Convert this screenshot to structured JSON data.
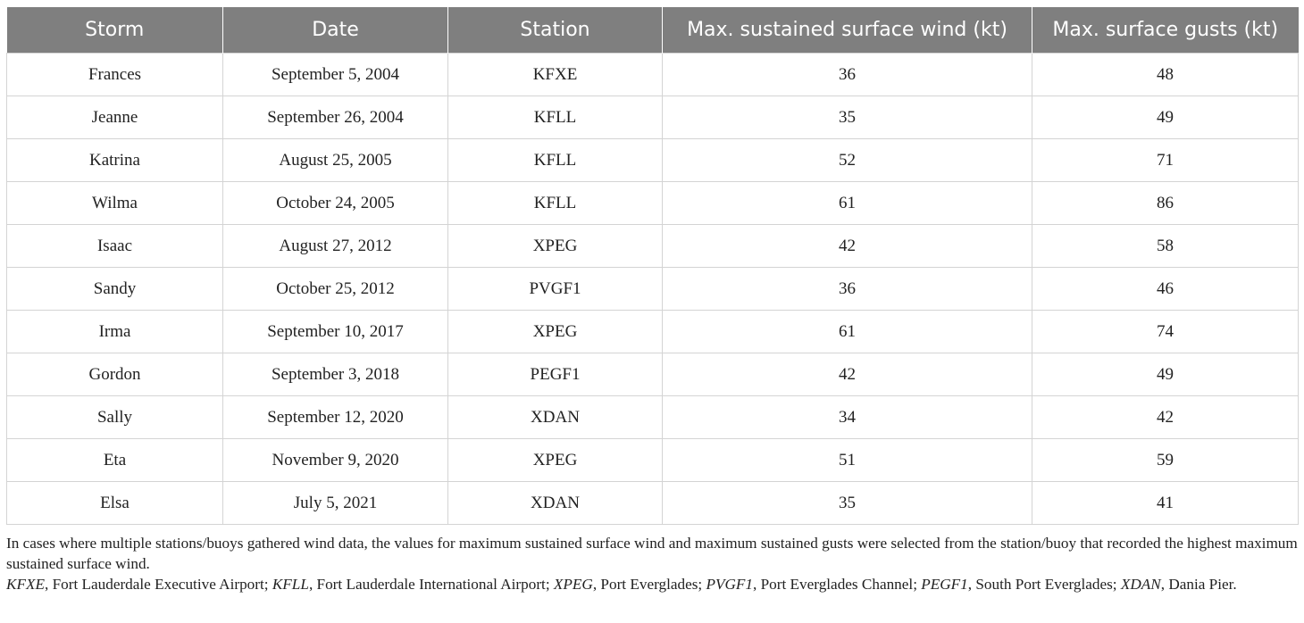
{
  "table": {
    "headers": [
      "Storm",
      "Date",
      "Station",
      "Max. sustained surface wind (kt)",
      "Max. surface gusts (kt)"
    ],
    "rows": [
      [
        "Frances",
        "September 5, 2004",
        "KFXE",
        "36",
        "48"
      ],
      [
        "Jeanne",
        "September 26, 2004",
        "KFLL",
        "35",
        "49"
      ],
      [
        "Katrina",
        "August 25, 2005",
        "KFLL",
        "52",
        "71"
      ],
      [
        "Wilma",
        "October 24, 2005",
        "KFLL",
        "61",
        "86"
      ],
      [
        "Isaac",
        "August 27, 2012",
        "XPEG",
        "42",
        "58"
      ],
      [
        "Sandy",
        "October 25, 2012",
        "PVGF1",
        "36",
        "46"
      ],
      [
        "Irma",
        "September 10, 2017",
        "XPEG",
        "61",
        "74"
      ],
      [
        "Gordon",
        "September 3, 2018",
        "PEGF1",
        "42",
        "49"
      ],
      [
        "Sally",
        "September 12, 2020",
        "XDAN",
        "34",
        "42"
      ],
      [
        "Eta",
        "November 9, 2020",
        "XPEG",
        "51",
        "59"
      ],
      [
        "Elsa",
        "July 5, 2021",
        "XDAN",
        "35",
        "41"
      ]
    ]
  },
  "footnote": "In cases where multiple stations/buoys gathered wind data, the values for maximum sustained surface wind and maximum sustained gusts were selected from the station/buoy that recorded the highest maximum sustained surface wind.",
  "abbreviations": [
    {
      "abbr": "KFXE",
      "meaning": "Fort Lauderdale Executive Airport"
    },
    {
      "abbr": "KFLL",
      "meaning": "Fort Lauderdale International Airport"
    },
    {
      "abbr": "XPEG",
      "meaning": "Port Everglades"
    },
    {
      "abbr": "PVGF1",
      "meaning": "Port Everglades Channel"
    },
    {
      "abbr": "PEGF1",
      "meaning": "South Port Everglades"
    },
    {
      "abbr": "XDAN",
      "meaning": "Dania Pier"
    }
  ]
}
